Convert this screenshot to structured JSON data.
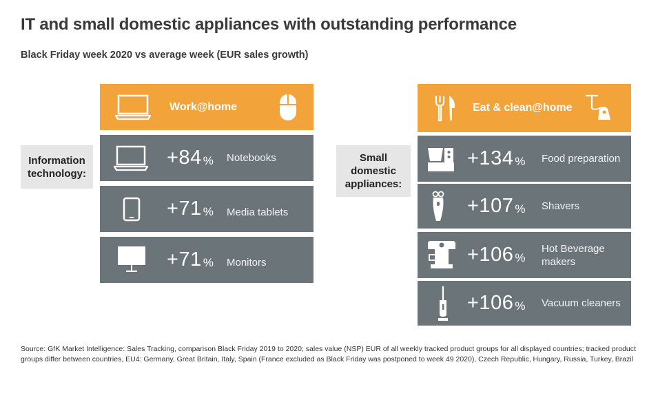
{
  "title": "IT and small domestic appliances with outstanding performance",
  "subtitle": "Black Friday week 2020 vs average week (EUR sales growth)",
  "left": {
    "category_label": "Information technology:",
    "header": {
      "label": "Work@home",
      "icons": [
        "laptop-icon",
        "mouse-icon"
      ]
    },
    "rows": [
      {
        "value": "+84",
        "unit": "%",
        "name": "Notebooks",
        "icon": "laptop-icon"
      },
      {
        "value": "+71",
        "unit": "%",
        "name": "Media tablets",
        "icon": "tablet-icon"
      },
      {
        "value": "+71",
        "unit": "%",
        "name": "Monitors",
        "icon": "monitor-icon"
      }
    ]
  },
  "right": {
    "category_label": "Small domestic appliances:",
    "header": {
      "label": "Eat & clean@home",
      "icons": [
        "cutlery-icon",
        "iron-icon"
      ]
    },
    "rows": [
      {
        "value": "+134",
        "unit": "%",
        "name": "Food preparation",
        "icon": "food-processor-icon"
      },
      {
        "value": "+107",
        "unit": "%",
        "name": "Shavers",
        "icon": "shaver-icon"
      },
      {
        "value": "+106",
        "unit": "%",
        "name": "Hot Beverage makers",
        "icon": "coffee-machine-icon"
      },
      {
        "value": "+106",
        "unit": "%",
        "name": "Vacuum cleaners",
        "icon": "vacuum-cleaner-icon"
      }
    ]
  },
  "colors": {
    "header": "#f2a33a",
    "row": "#6b7479",
    "label_bg": "#e6e6e6"
  },
  "source": "Source: GfK Market Intelligence: Sales Tracking, comparison Black Friday 2019 to 2020; sales value (NSP) EUR of all weekly tracked product groups for all displayed countries; tracked product groups differ between countries, EU4: Germany, Great Britain, Italy, Spain (France excluded as Black Friday was postponed to week 49 2020), Czech Republic, Hungary, Russia, Turkey, Brazil"
}
